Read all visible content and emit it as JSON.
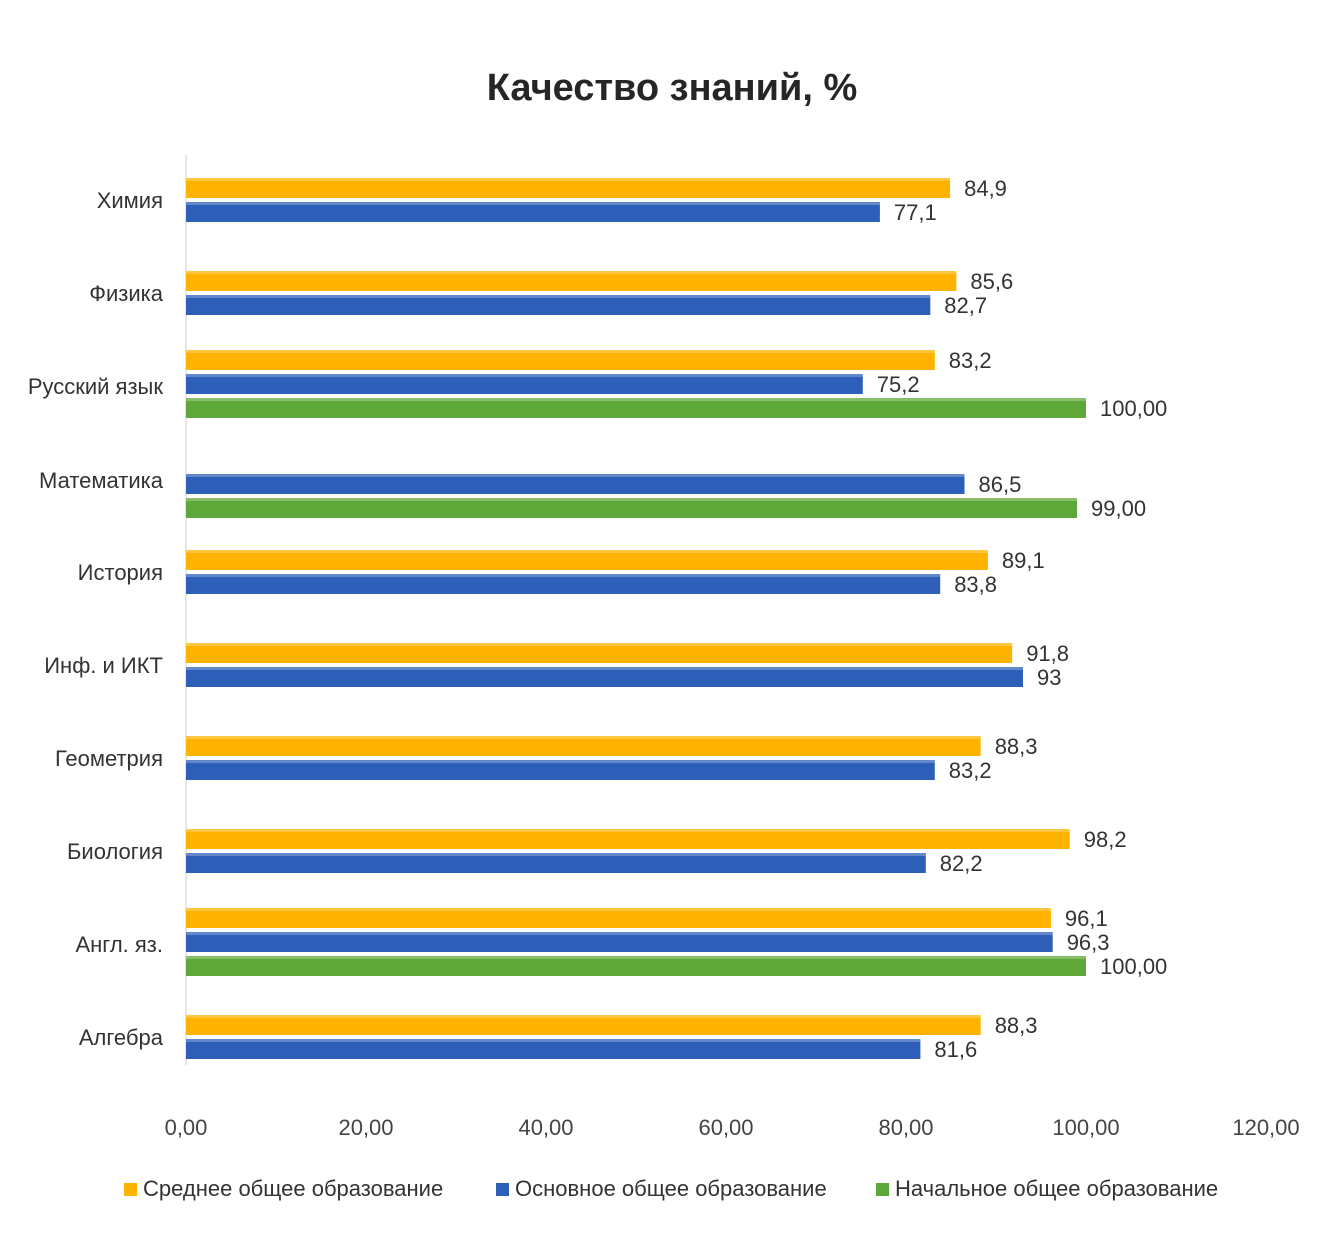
{
  "chart_data": {
    "type": "bar",
    "orientation": "horizontal",
    "title": "Качество знаний, %",
    "categories": [
      "Химия",
      "Физика",
      "Русский язык",
      "Математика",
      "История",
      "Инф. и ИКТ",
      "Геометрия",
      "Биология",
      "Англ. яз.",
      "Алгебра"
    ],
    "series": [
      {
        "name": "Среднее общее образование",
        "color": "#FFB300",
        "values": [
          84.9,
          85.6,
          83.2,
          null,
          89.1,
          91.8,
          88.3,
          98.2,
          96.1,
          88.3
        ],
        "labels": [
          "84,9",
          "85,6",
          "83,2",
          null,
          "89,1",
          "91,8",
          "88,3",
          "98,2",
          "96,1",
          "88,3"
        ]
      },
      {
        "name": "Основное общее образование",
        "color": "#2E5FB8",
        "values": [
          77.1,
          82.7,
          75.2,
          86.5,
          83.8,
          93,
          83.2,
          82.2,
          96.3,
          81.6
        ],
        "labels": [
          "77,1",
          "82,7",
          "75,2",
          "86,5",
          "83,8",
          "93",
          "83,2",
          "82,2",
          "96,3",
          "81,6"
        ]
      },
      {
        "name": "Начальное общее образование",
        "color": "#5EA83A",
        "values": [
          null,
          null,
          100,
          99,
          null,
          null,
          null,
          null,
          100,
          null
        ],
        "labels": [
          null,
          null,
          "100,00",
          "99,00",
          null,
          null,
          null,
          null,
          "100,00",
          null
        ]
      }
    ],
    "xlim": [
      0,
      120
    ],
    "x_ticks": [
      0,
      20,
      40,
      60,
      80,
      100,
      120
    ],
    "x_tick_labels": [
      "0,00",
      "20,00",
      "40,00",
      "60,00",
      "80,00",
      "100,00",
      "120,00"
    ],
    "grid": false,
    "legend_position": "bottom"
  }
}
